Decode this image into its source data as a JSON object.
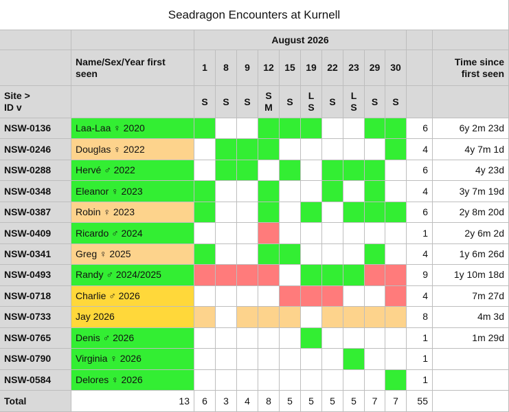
{
  "title": "Seadragon Encounters at Kurnell",
  "month": "August 2026",
  "name_header": "Name/Sex/Year first seen",
  "days": [
    1,
    8,
    9,
    12,
    15,
    19,
    22,
    23,
    29,
    30
  ],
  "time_header": "Time since first seen",
  "site_header": [
    "Site >",
    "ID v"
  ],
  "sites": [
    [
      "S"
    ],
    [
      "S"
    ],
    [
      "S"
    ],
    [
      "S",
      "M"
    ],
    [
      "S"
    ],
    [
      "L",
      "S"
    ],
    [
      "S"
    ],
    [
      "L",
      "S"
    ],
    [
      "S"
    ],
    [
      "S"
    ]
  ],
  "rows": [
    {
      "id": "NSW-0136",
      "name": "Laa-Laa ♀ 2020",
      "color": "#33ee33",
      "cells": [
        "#33ee33",
        null,
        null,
        "#33ee33",
        "#33ee33",
        "#33ee33",
        null,
        null,
        "#33ee33",
        "#33ee33"
      ],
      "count": 6,
      "time": "6y 2m 23d"
    },
    {
      "id": "NSW-0246",
      "name": "Douglas ♀ 2022",
      "color": "#fdd38c",
      "cells": [
        null,
        "#33ee33",
        "#33ee33",
        "#33ee33",
        null,
        null,
        null,
        null,
        null,
        "#33ee33"
      ],
      "count": 4,
      "time": "4y 7m 1d"
    },
    {
      "id": "NSW-0288",
      "name": "Hervé ♂ 2022",
      "color": "#33ee33",
      "cells": [
        null,
        "#33ee33",
        "#33ee33",
        null,
        "#33ee33",
        null,
        "#33ee33",
        "#33ee33",
        "#33ee33",
        null
      ],
      "count": 6,
      "time": "4y 23d"
    },
    {
      "id": "NSW-0348",
      "name": "Eleanor ♀ 2023",
      "color": "#33ee33",
      "cells": [
        "#33ee33",
        null,
        null,
        "#33ee33",
        null,
        null,
        "#33ee33",
        null,
        "#33ee33",
        null
      ],
      "count": 4,
      "time": "3y 7m 19d"
    },
    {
      "id": "NSW-0387",
      "name": "Robin ♀ 2023",
      "color": "#fdd38c",
      "cells": [
        "#33ee33",
        null,
        null,
        "#33ee33",
        null,
        "#33ee33",
        null,
        "#33ee33",
        "#33ee33",
        "#33ee33"
      ],
      "count": 6,
      "time": "2y 8m 20d"
    },
    {
      "id": "NSW-0409",
      "name": "Ricardo ♂ 2024",
      "color": "#33ee33",
      "cells": [
        null,
        null,
        null,
        "#ff7b7b",
        null,
        null,
        null,
        null,
        null,
        null
      ],
      "count": 1,
      "time": "2y 6m 2d"
    },
    {
      "id": "NSW-0341",
      "name": "Greg ♀ 2025",
      "color": "#fdd38c",
      "cells": [
        "#33ee33",
        null,
        null,
        "#33ee33",
        "#33ee33",
        null,
        null,
        null,
        "#33ee33",
        null
      ],
      "count": 4,
      "time": "1y 6m 26d"
    },
    {
      "id": "NSW-0493",
      "name": "Randy ♂ 2024/2025",
      "color": "#33ee33",
      "cells": [
        "#ff7b7b",
        "#ff7b7b",
        "#ff7b7b",
        "#ff7b7b",
        null,
        "#33ee33",
        "#33ee33",
        "#33ee33",
        "#ff7b7b",
        "#ff7b7b"
      ],
      "count": 9,
      "time": "1y 10m 18d"
    },
    {
      "id": "NSW-0718",
      "name": "Charlie ♂ 2026",
      "color": "#ffd83a",
      "cells": [
        null,
        null,
        null,
        null,
        "#ff7b7b",
        "#ff7b7b",
        "#ff7b7b",
        null,
        null,
        "#ff7b7b"
      ],
      "count": 4,
      "time": "7m 27d"
    },
    {
      "id": "NSW-0733",
      "name": "Jay 2026",
      "color": "#ffd83a",
      "cells": [
        "#fdd38c",
        null,
        "#fdd38c",
        "#fdd38c",
        "#fdd38c",
        null,
        "#fdd38c",
        "#fdd38c",
        "#fdd38c",
        "#fdd38c"
      ],
      "count": 8,
      "time": "4m 3d"
    },
    {
      "id": "NSW-0765",
      "name": "Denis ♂ 2026",
      "color": "#33ee33",
      "cells": [
        null,
        null,
        null,
        null,
        null,
        "#33ee33",
        null,
        null,
        null,
        null
      ],
      "count": 1,
      "time": "1m 29d"
    },
    {
      "id": "NSW-0790",
      "name": "Virginia ♀ 2026",
      "color": "#33ee33",
      "cells": [
        null,
        null,
        null,
        null,
        null,
        null,
        null,
        "#33ee33",
        null,
        null
      ],
      "count": 1
    },
    {
      "id": "NSW-0584",
      "name": "Delores ♀ 2026",
      "color": "#33ee33",
      "cells": [
        null,
        null,
        null,
        null,
        null,
        null,
        null,
        null,
        null,
        "#33ee33"
      ],
      "count": 1
    }
  ],
  "total": {
    "label": "Total",
    "names": 13,
    "days": [
      6,
      3,
      4,
      8,
      5,
      5,
      5,
      5,
      7,
      7
    ],
    "count": 55
  }
}
